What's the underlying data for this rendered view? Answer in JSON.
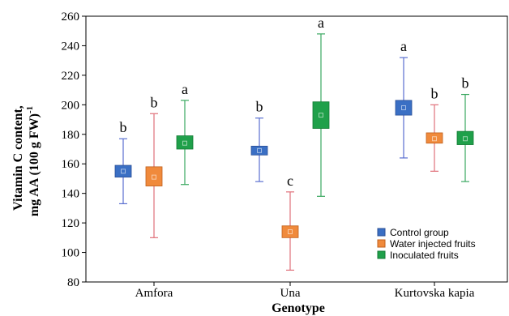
{
  "chart_data": {
    "type": "box",
    "xlabel": "Genotype",
    "ylabel_line1": "Vitamin C content,",
    "ylabel_line2": "mg AA (100 g FW)",
    "ylabel_superscript": "-1",
    "ylim": [
      80,
      260
    ],
    "yticks": [
      80,
      100,
      120,
      140,
      160,
      180,
      200,
      220,
      240,
      260
    ],
    "categories": [
      "Amfora",
      "Una",
      "Kurtovska kapia"
    ],
    "legend_position": "bottom-right",
    "series": [
      {
        "name": "Control group",
        "color": "#3a6fc4",
        "stroke": "#2a4f96",
        "whisker_color": "#5a6fd0",
        "data": [
          {
            "category": "Amfora",
            "min": 133,
            "q1": 151,
            "median": 155,
            "q3": 159,
            "max": 177,
            "letter": "b"
          },
          {
            "category": "Una",
            "min": 148,
            "q1": 166,
            "median": 169,
            "q3": 172,
            "max": 191,
            "letter": "b"
          },
          {
            "category": "Kurtovska kapia",
            "min": 164,
            "q1": 193,
            "median": 198,
            "q3": 203,
            "max": 232,
            "letter": "a"
          }
        ]
      },
      {
        "name": "Water injected fruits",
        "color": "#f08a3c",
        "stroke": "#c0601c",
        "whisker_color": "#e0707a",
        "data": [
          {
            "category": "Amfora",
            "min": 110,
            "q1": 145,
            "median": 151,
            "q3": 158,
            "max": 194,
            "letter": "b"
          },
          {
            "category": "Una",
            "min": 88,
            "q1": 110,
            "median": 114,
            "q3": 118,
            "max": 141,
            "letter": "c"
          },
          {
            "category": "Kurtovska kapia",
            "min": 155,
            "q1": 174,
            "median": 177,
            "q3": 181,
            "max": 200,
            "letter": "b"
          }
        ]
      },
      {
        "name": "Inoculated fruits",
        "color": "#1fa04a",
        "stroke": "#137a34",
        "whisker_color": "#3aa860",
        "data": [
          {
            "category": "Amfora",
            "min": 146,
            "q1": 170,
            "median": 174,
            "q3": 179,
            "max": 203,
            "letter": "a"
          },
          {
            "category": "Una",
            "min": 138,
            "q1": 184,
            "median": 193,
            "q3": 202,
            "max": 248,
            "letter": "a"
          },
          {
            "category": "Kurtovska kapia",
            "min": 148,
            "q1": 173,
            "median": 177,
            "q3": 182,
            "max": 207,
            "letter": "b"
          }
        ]
      }
    ]
  }
}
